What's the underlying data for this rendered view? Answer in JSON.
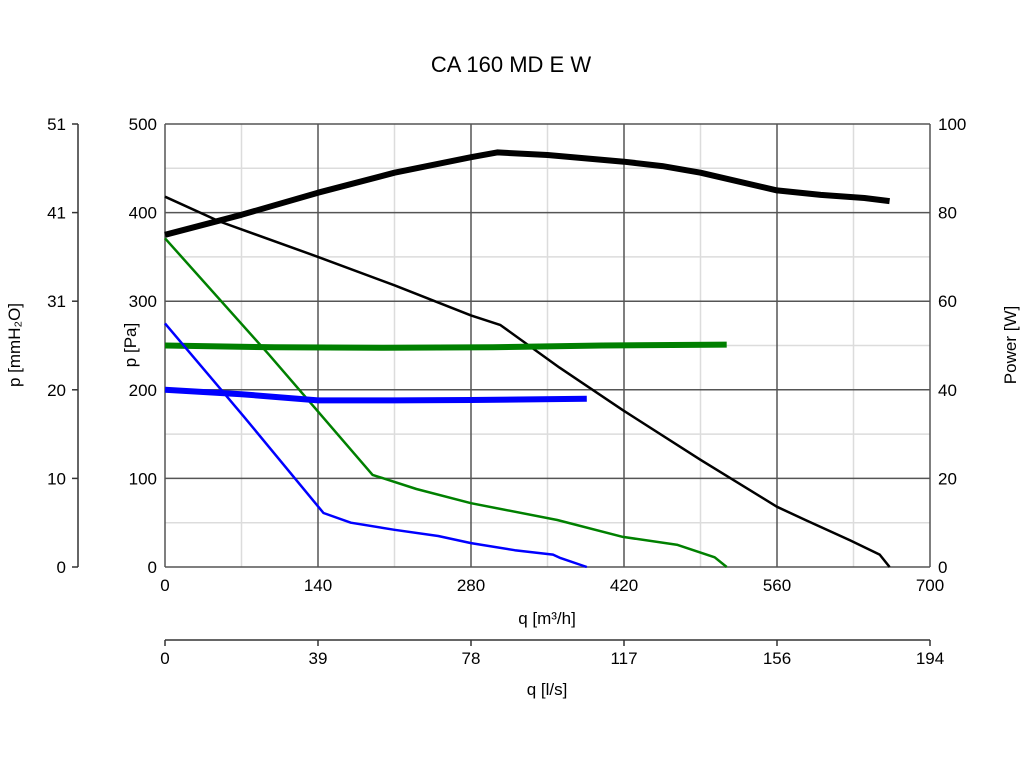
{
  "chart_data": {
    "type": "line",
    "title": "CA 160 MD E W",
    "xlabel": "q [m³/h]",
    "xlabel2": "q [l/s]",
    "ylabel": "p [Pa]",
    "ylabel_left_outer": "p [mmH₂O]",
    "ylabel_right": "Power [W]",
    "xlim": [
      0,
      700
    ],
    "ylim": [
      0,
      500
    ],
    "ylim_right": [
      0,
      100
    ],
    "x_ticks": [
      "0",
      "140",
      "280",
      "420",
      "560",
      "700"
    ],
    "x2_ticks": [
      "0",
      "39",
      "78",
      "117",
      "156",
      "194"
    ],
    "y_ticks": [
      "0",
      "100",
      "200",
      "300",
      "400",
      "500"
    ],
    "y_outer_ticks": [
      "0",
      "10",
      "20",
      "31",
      "41",
      "51"
    ],
    "y_right_ticks": [
      "0",
      "20",
      "40",
      "60",
      "80",
      "100"
    ],
    "grid": true,
    "series": [
      {
        "name": "pressure-black",
        "axis": "left",
        "color": "#000000",
        "width": 2.5,
        "x": [
          0,
          50,
          140,
          210,
          280,
          307,
          361,
          419,
          490,
          560,
          586,
          627,
          654,
          663
        ],
        "y": [
          418,
          390,
          350,
          318,
          284,
          273,
          225,
          177,
          121,
          68,
          53,
          30,
          14,
          0
        ]
      },
      {
        "name": "power-black",
        "axis": "right",
        "color": "#000000",
        "width": 6,
        "x": [
          0,
          70,
          140,
          210,
          280,
          304,
          350,
          420,
          455,
          490,
          560,
          600,
          640,
          663
        ],
        "y": [
          75,
          79.5,
          84.5,
          89,
          92.5,
          93.6,
          93,
          91.5,
          90.5,
          89,
          85,
          84,
          83.3,
          82.6
        ]
      },
      {
        "name": "pressure-green",
        "axis": "left",
        "color": "#008000",
        "width": 2.5,
        "x": [
          0,
          95,
          190,
          230,
          280,
          359,
          419,
          469,
          503,
          514
        ],
        "y": [
          371,
          240,
          104,
          88,
          72,
          53,
          34,
          25,
          11,
          0
        ]
      },
      {
        "name": "power-green",
        "axis": "right",
        "color": "#008000",
        "width": 6,
        "x": [
          0,
          100,
          200,
          300,
          400,
          514
        ],
        "y": [
          50,
          49.6,
          49.5,
          49.6,
          50,
          50.2
        ]
      },
      {
        "name": "pressure-blue",
        "axis": "left",
        "color": "#0000ff",
        "width": 2.5,
        "x": [
          0,
          72,
          145,
          170,
          210,
          250,
          280,
          320,
          355,
          362,
          386
        ],
        "y": [
          275,
          170,
          61,
          50,
          42,
          35,
          27,
          19,
          14,
          10,
          0
        ]
      },
      {
        "name": "power-blue",
        "axis": "right",
        "color": "#0000ff",
        "width": 6,
        "x": [
          0,
          70,
          140,
          210,
          280,
          386
        ],
        "y": [
          40,
          39,
          37.6,
          37.6,
          37.7,
          38
        ]
      }
    ]
  }
}
